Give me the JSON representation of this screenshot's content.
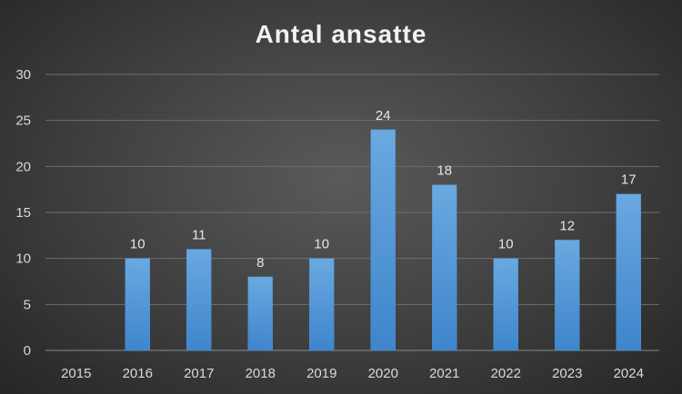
{
  "chart_data": {
    "type": "bar",
    "title": "Antal ansatte",
    "categories": [
      "2015",
      "2016",
      "2017",
      "2018",
      "2019",
      "2020",
      "2021",
      "2022",
      "2023",
      "2024"
    ],
    "values": [
      0,
      10,
      11,
      8,
      10,
      24,
      18,
      10,
      12,
      17
    ],
    "data_labels": [
      "",
      "10",
      "11",
      "8",
      "10",
      "24",
      "18",
      "10",
      "12",
      "17"
    ],
    "ylim": [
      0,
      30
    ],
    "yticks": [
      0,
      5,
      10,
      15,
      20,
      25,
      30
    ],
    "grid": true,
    "bar_color": "#5b9bd5"
  }
}
